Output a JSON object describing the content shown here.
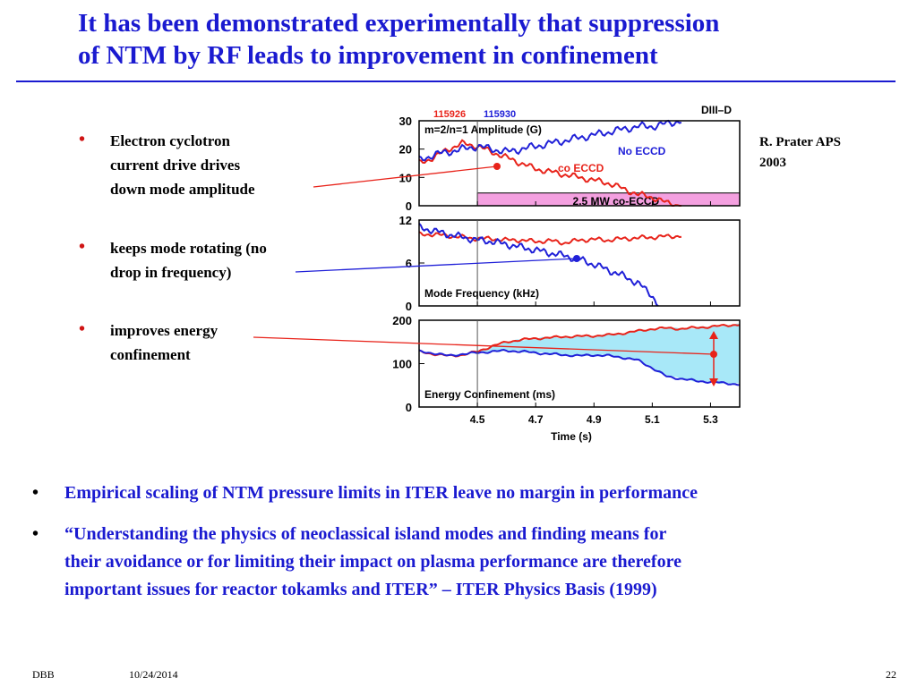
{
  "slide": {
    "title_line1": "It has been demonstrated experimentally that suppression",
    "title_line2": "of NTM by RF leads to improvement in  confinement",
    "credit_line1": "R. Prater APS",
    "credit_line2": "2003",
    "left_bullets": [
      {
        "line1": "Electron cyclotron",
        "line2": "current drive drives",
        "line3": "down mode amplitude"
      },
      {
        "line1": "keeps mode rotating (no",
        "line2": "drop in frequency)"
      },
      {
        "line1": "improves energy",
        "line2": "confinement"
      }
    ],
    "bottom_bullets": [
      {
        "line1": "Empirical scaling of NTM pressure limits in ITER leave no margin in performance"
      },
      {
        "line1": "“Understanding the physics of neoclassical island modes and finding means for",
        "line2": "their avoidance or for limiting their impact on plasma performance are therefore",
        "line3": "important issues for reactor tokamks and ITER” – ITER Physics Basis (1999)"
      }
    ],
    "bullet_char": "•",
    "footer": {
      "author": "DBB",
      "date": "10/24/2014",
      "page": "22"
    },
    "colors": {
      "title": "#1a1ad0",
      "shot_red": "#e8231a",
      "shot_blue": "#2020d8",
      "eccd_band": "#f4a0e0",
      "confinement_fill": "#a8e8f8"
    }
  },
  "chart_data": {
    "type": "line",
    "device_label": "DIII–D",
    "legend": [
      {
        "name": "115926",
        "color": "#e8231a"
      },
      {
        "name": "115930",
        "color": "#2020d8"
      }
    ],
    "xlabel": "Time (s)",
    "xlim": [
      4.3,
      5.4
    ],
    "xticks": [
      "4.5",
      "4.7",
      "4.9",
      "5.1",
      "5.3"
    ],
    "xtick_values": [
      4.5,
      4.7,
      4.9,
      5.1,
      5.3
    ],
    "panels": [
      {
        "label": "m=2/n=1 Amplitude (G)",
        "ylim": [
          0,
          30
        ],
        "yticks": [
          "0",
          "10",
          "20",
          "30"
        ],
        "ytick_values": [
          0,
          10,
          20,
          30
        ],
        "annotations": [
          "No ECCD",
          "co ECCD"
        ],
        "band": {
          "label": "2.5 MW co-ECCD",
          "x": [
            4.5,
            5.4
          ],
          "y": [
            0,
            4.5
          ]
        },
        "series": [
          {
            "name": "115926",
            "x": [
              4.3,
              4.35,
              4.4,
              4.45,
              4.5,
              4.55,
              4.6,
              4.65,
              4.7,
              4.75,
              4.8,
              4.85,
              4.9,
              4.95,
              5.0,
              5.05,
              5.1,
              5.15,
              5.2
            ],
            "y": [
              15,
              17,
              20,
              22,
              21,
              19,
              17,
              15,
              13,
              12,
              11,
              10,
              9,
              8,
              6,
              4,
              3,
              1,
              0
            ]
          },
          {
            "name": "115930",
            "x": [
              4.3,
              4.35,
              4.4,
              4.45,
              4.5,
              4.55,
              4.6,
              4.65,
              4.7,
              4.75,
              4.8,
              4.85,
              4.9,
              4.95,
              5.0,
              5.05,
              5.1,
              5.15,
              5.2
            ],
            "y": [
              16,
              18,
              19,
              20,
              21,
              20,
              19,
              20,
              21,
              22,
              23,
              24,
              25,
              26,
              27,
              28,
              28,
              29,
              30
            ]
          }
        ]
      },
      {
        "label": "Mode Frequency (kHz)",
        "ylim": [
          0,
          12
        ],
        "yticks": [
          "0",
          "6",
          "12"
        ],
        "ytick_values": [
          0,
          6,
          12
        ],
        "series": [
          {
            "name": "115926",
            "x": [
              4.3,
              4.35,
              4.4,
              4.45,
              4.5,
              4.55,
              4.6,
              4.65,
              4.7,
              4.75,
              4.8,
              4.85,
              4.9,
              4.95,
              5.0,
              5.05,
              5.1,
              5.15,
              5.2
            ],
            "y": [
              10,
              10,
              9.8,
              9.6,
              9.4,
              9.4,
              9.2,
              9.2,
              9.0,
              9.1,
              8.8,
              9.2,
              9.3,
              9.2,
              9.4,
              9.5,
              9.6,
              9.7,
              9.8
            ]
          },
          {
            "name": "115930",
            "x": [
              4.3,
              4.35,
              4.4,
              4.45,
              4.5,
              4.55,
              4.6,
              4.65,
              4.7,
              4.75,
              4.8,
              4.85,
              4.9,
              4.95,
              5.0,
              5.05,
              5.1,
              5.12
            ],
            "y": [
              11,
              10.5,
              10,
              9.6,
              9.2,
              9.0,
              8.6,
              8.2,
              7.8,
              7.4,
              7.0,
              6.5,
              5.8,
              5.0,
              4.2,
              3.2,
              1.5,
              0
            ]
          }
        ]
      },
      {
        "label": "Energy Confinement (ms)",
        "ylim": [
          0,
          200
        ],
        "yticks": [
          "0",
          "100",
          "200"
        ],
        "ytick_values": [
          0,
          100,
          200
        ],
        "series": [
          {
            "name": "115926",
            "x": [
              4.3,
              4.35,
              4.4,
              4.45,
              4.5,
              4.55,
              4.6,
              4.65,
              4.7,
              4.75,
              4.8,
              4.85,
              4.9,
              4.95,
              5.0,
              5.05,
              5.1,
              5.15,
              5.2,
              5.25,
              5.3,
              5.35,
              5.4
            ],
            "y": [
              128,
              122,
              118,
              120,
              128,
              140,
              150,
              155,
              158,
              160,
              162,
              163,
              164,
              166,
              170,
              175,
              180,
              182,
              180,
              183,
              185,
              188,
              190
            ]
          },
          {
            "name": "115930",
            "x": [
              4.3,
              4.35,
              4.4,
              4.45,
              4.5,
              4.55,
              4.6,
              4.65,
              4.7,
              4.75,
              4.8,
              4.85,
              4.9,
              4.95,
              5.0,
              5.05,
              5.1,
              5.15,
              5.2,
              5.25,
              5.3,
              5.35,
              5.4
            ],
            "y": [
              128,
              124,
              118,
              122,
              125,
              128,
              130,
              128,
              125,
              122,
              120,
              118,
              120,
              118,
              114,
              108,
              90,
              70,
              65,
              60,
              58,
              55,
              52
            ]
          }
        ]
      }
    ]
  }
}
